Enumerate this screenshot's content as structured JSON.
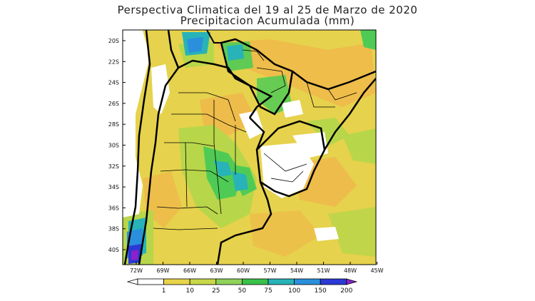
{
  "title": {
    "line1": "Perspectiva Climatica del 19 al 25 de Marzo de 2020",
    "line2": "Precipitacion Acumulada (mm)"
  },
  "lat_labels": [
    "20S",
    "22S",
    "24S",
    "26S",
    "28S",
    "30S",
    "32S",
    "34S",
    "36S",
    "38S",
    "40S"
  ],
  "lon_labels": [
    "72W",
    "69W",
    "66W",
    "63W",
    "60W",
    "57W",
    "54W",
    "51W",
    "48W",
    "45W"
  ],
  "colorbar": {
    "labels": [
      "1",
      "10",
      "25",
      "50",
      "75",
      "100",
      "150",
      "200"
    ],
    "colors": [
      "#ffffff",
      "#e8d44a",
      "#c8d848",
      "#8fd35a",
      "#39c14a",
      "#27b3b7",
      "#2a8fdc",
      "#2c39d6",
      "#8a21c9"
    ]
  }
}
